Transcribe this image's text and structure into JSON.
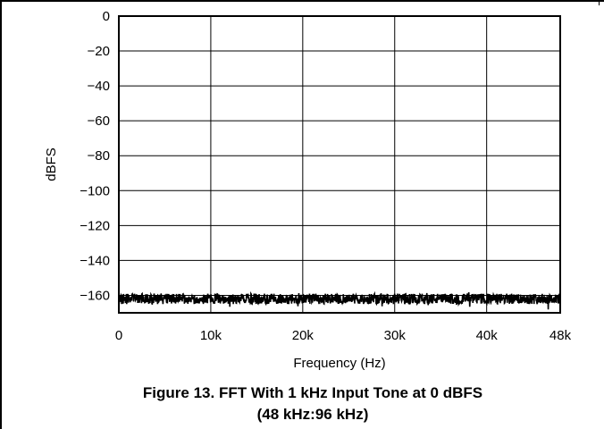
{
  "chart_data": {
    "type": "line",
    "xlabel": "Frequency (Hz)",
    "ylabel": "dBFS",
    "xlim": [
      0,
      48000
    ],
    "ylim": [
      -170,
      0
    ],
    "x_ticks": [
      0,
      10000,
      20000,
      30000,
      40000,
      48000
    ],
    "x_tick_labels": [
      "0",
      "10k",
      "20k",
      "30k",
      "40k",
      "48k"
    ],
    "y_ticks": [
      0,
      -20,
      -40,
      -60,
      -80,
      -100,
      -120,
      -140,
      -160
    ],
    "y_tick_labels": [
      "0",
      "−20",
      "−40",
      "−60",
      "−80",
      "−100",
      "−120",
      "−140",
      "−160"
    ],
    "grid": true,
    "series": [
      {
        "noise_floor_db": -162,
        "noise_spread_db": 3,
        "color": "#000000"
      }
    ]
  },
  "caption": {
    "line1": "Figure 13. FFT With 1 kHz Input Tone at 0 dBFS",
    "line2": "(48 kHz:96 kHz)"
  }
}
